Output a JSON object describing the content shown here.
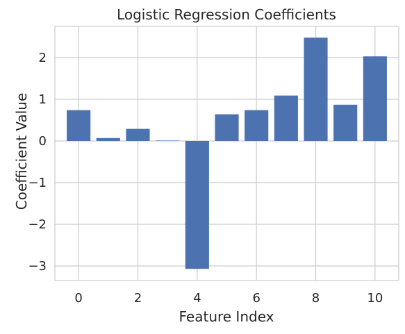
{
  "chart_data": {
    "type": "bar",
    "title": "Logistic Regression Coefficients",
    "xlabel": "Feature Index",
    "ylabel": "Coefficient Value",
    "categories": [
      0,
      1,
      2,
      3,
      4,
      5,
      6,
      7,
      8,
      9,
      10
    ],
    "values": [
      0.74,
      0.07,
      0.29,
      0.01,
      -3.07,
      0.64,
      0.74,
      1.09,
      2.48,
      0.87,
      2.03
    ],
    "xlim": [
      -0.8,
      10.8
    ],
    "ylim": [
      -3.35,
      2.75
    ],
    "xticks": [
      0,
      2,
      4,
      6,
      8,
      10
    ],
    "xtick_labels": [
      "0",
      "2",
      "4",
      "6",
      "8",
      "10"
    ],
    "yticks": [
      -3,
      -2,
      -1,
      0,
      1,
      2
    ],
    "ytick_labels": [
      "−3",
      "−2",
      "−1",
      "0",
      "1",
      "2"
    ],
    "grid": true,
    "legend": "none",
    "colors": {
      "bar": "#4c72b0",
      "grid": "#cccccc",
      "axes": "#cccccc",
      "text": "#262626",
      "background": "#ffffff"
    }
  }
}
